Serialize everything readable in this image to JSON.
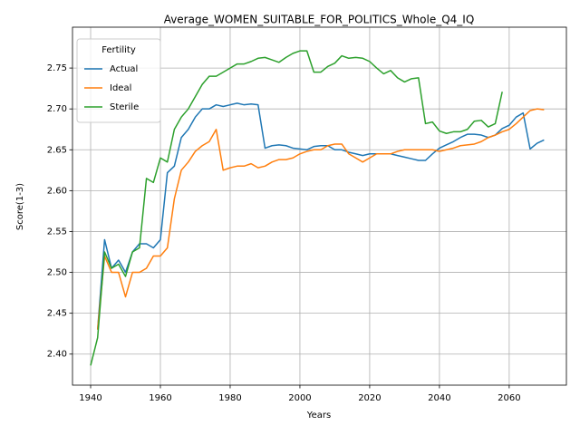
{
  "chart_data": {
    "type": "line",
    "title": "Average_WOMEN_SUITABLE_FOR_POLITICS_Whole_Q4_IQ",
    "xlabel": "Years",
    "ylabel": "Score(1-3)",
    "legend_title": "Fertility",
    "legend": "upper left",
    "grid": true,
    "xlim": [
      1934.8,
      2076.4
    ],
    "ylim": [
      2.362,
      2.8
    ],
    "xticks": [
      1940,
      1960,
      1980,
      2000,
      2020,
      2040,
      2060
    ],
    "yticks": [
      {
        "value": 2.4,
        "label": "2.40"
      },
      2.45,
      {
        "value": 2.5,
        "label": "2.50"
      },
      2.55,
      {
        "value": 2.6,
        "label": "2.60"
      },
      2.65,
      {
        "value": 2.7,
        "label": "2.70"
      },
      2.75
    ],
    "x": [
      1940,
      1942,
      1944,
      1946,
      1948,
      1950,
      1952,
      1954,
      1956,
      1958,
      1960,
      1962,
      1964,
      1966,
      1968,
      1970,
      1972,
      1974,
      1976,
      1978,
      1980,
      1982,
      1984,
      1986,
      1988,
      1990,
      1992,
      1994,
      1996,
      1998,
      2000,
      2002,
      2004,
      2006,
      2008,
      2010,
      2012,
      2014,
      2016,
      2018,
      2020,
      2022,
      2024,
      2026,
      2028,
      2030,
      2032,
      2034,
      2036,
      2038,
      2040,
      2042,
      2044,
      2046,
      2048,
      2050,
      2052,
      2054,
      2056,
      2058,
      2060,
      2062,
      2064,
      2066,
      2068,
      2070
    ],
    "series": [
      {
        "name": "Actual",
        "color": "#1f77b4",
        "values": [
          null,
          2.43,
          2.54,
          2.505,
          2.515,
          2.5,
          2.525,
          2.535,
          2.535,
          2.53,
          2.54,
          2.622,
          2.63,
          2.665,
          2.675,
          2.69,
          2.7,
          2.7,
          2.705,
          2.703,
          2.705,
          2.707,
          2.705,
          2.706,
          2.705,
          2.652,
          2.655,
          2.656,
          2.655,
          2.652,
          2.651,
          2.65,
          2.654,
          2.655,
          2.655,
          2.65,
          2.65,
          2.647,
          2.645,
          2.643,
          2.645,
          2.645,
          2.645,
          2.645,
          2.643,
          2.641,
          2.639,
          2.637,
          2.637,
          2.645,
          2.652,
          2.656,
          2.66,
          2.665,
          2.669,
          2.669,
          2.668,
          2.665,
          2.668,
          2.676,
          2.68,
          2.69,
          2.695,
          2.651,
          2.658,
          2.662
        ]
      },
      {
        "name": "Ideal",
        "color": "#ff7f0e",
        "values": [
          null,
          2.43,
          2.52,
          2.5,
          2.5,
          2.47,
          2.5,
          2.5,
          2.505,
          2.52,
          2.52,
          2.53,
          2.59,
          2.625,
          2.635,
          2.648,
          2.655,
          2.66,
          2.675,
          2.625,
          2.628,
          2.63,
          2.63,
          2.633,
          2.628,
          2.63,
          2.635,
          2.638,
          2.638,
          2.64,
          2.645,
          2.648,
          2.65,
          2.65,
          2.655,
          2.657,
          2.657,
          2.645,
          2.64,
          2.635,
          2.64,
          2.645,
          2.645,
          2.645,
          2.648,
          2.65,
          2.65,
          2.65,
          2.65,
          2.65,
          2.648,
          2.65,
          2.652,
          2.655,
          2.656,
          2.657,
          2.66,
          2.665,
          2.668,
          2.672,
          2.675,
          2.682,
          2.69,
          2.698,
          2.7,
          2.699
        ]
      },
      {
        "name": "Sterile",
        "color": "#2ca02c",
        "values": [
          2.386,
          2.42,
          2.525,
          2.505,
          2.51,
          2.495,
          2.525,
          2.53,
          2.615,
          2.61,
          2.64,
          2.635,
          2.675,
          2.69,
          2.7,
          2.715,
          2.73,
          2.74,
          2.74,
          2.745,
          2.75,
          2.755,
          2.755,
          2.758,
          2.762,
          2.763,
          2.76,
          2.757,
          2.763,
          2.768,
          2.771,
          2.771,
          2.745,
          2.745,
          2.752,
          2.756,
          2.765,
          2.762,
          2.763,
          2.762,
          2.758,
          2.75,
          2.743,
          2.747,
          2.738,
          2.733,
          2.737,
          2.738,
          2.682,
          2.684,
          2.673,
          2.67,
          2.672,
          2.672,
          2.675,
          2.685,
          2.686,
          2.678,
          2.682,
          2.721,
          null,
          null,
          null,
          null,
          null,
          null
        ]
      }
    ]
  }
}
